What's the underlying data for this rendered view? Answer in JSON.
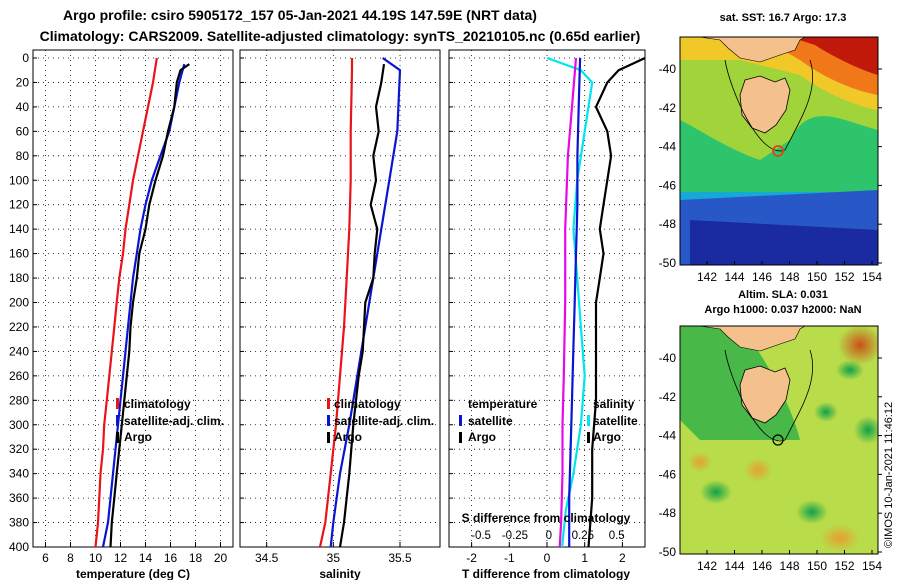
{
  "titles": {
    "line1": "Argo profile: csiro 5905172_157 05-Jan-2021 44.19S 147.59E (NRT data)",
    "line2": "Climatology: CARS2009. Satellite-adjusted climatology: synTS_20210105.nc (0.65d earlier)"
  },
  "colors": {
    "clim": "#e8141a",
    "sat": "#0a14d2",
    "argo": "#000000",
    "tdiff": "#00e5ee",
    "sdiff": "#e60ae6"
  },
  "legend": {
    "temp_panel": [
      "climatology",
      "satellite-adj. clim.",
      "Argo"
    ],
    "sal_panel": [
      "climatology",
      "satellite-adj. clim.",
      "Argo"
    ],
    "diff_left_title": "temperature",
    "diff_right_title": "salinity",
    "diff_items": [
      "satellite",
      "Argo"
    ]
  },
  "chart_data": [
    {
      "id": "temperature",
      "type": "line",
      "xlabel": "temperature (deg C)",
      "ylabel": "",
      "xlim": [
        5,
        21
      ],
      "ylim": [
        400,
        0
      ],
      "xticks": [
        6,
        8,
        10,
        12,
        14,
        16,
        18,
        20
      ],
      "yticks": [
        0,
        20,
        40,
        60,
        80,
        100,
        120,
        140,
        160,
        180,
        200,
        220,
        240,
        260,
        280,
        300,
        320,
        340,
        360,
        380,
        400
      ],
      "grid": true,
      "series": [
        {
          "name": "climatology",
          "color_key": "clim",
          "points": [
            [
              14.9,
              0
            ],
            [
              14.6,
              20
            ],
            [
              14.2,
              40
            ],
            [
              13.8,
              60
            ],
            [
              13.4,
              80
            ],
            [
              13.0,
              100
            ],
            [
              12.7,
              120
            ],
            [
              12.4,
              140
            ],
            [
              12.2,
              160
            ],
            [
              11.9,
              180
            ],
            [
              11.7,
              200
            ],
            [
              11.5,
              220
            ],
            [
              11.3,
              240
            ],
            [
              11.1,
              260
            ],
            [
              10.9,
              280
            ],
            [
              10.7,
              300
            ],
            [
              10.6,
              320
            ],
            [
              10.4,
              340
            ],
            [
              10.3,
              360
            ],
            [
              10.2,
              380
            ],
            [
              10.0,
              400
            ]
          ]
        },
        {
          "name": "satellite-adj. clim.",
          "color_key": "sat",
          "points": [
            [
              17.1,
              5
            ],
            [
              16.7,
              20
            ],
            [
              16.3,
              40
            ],
            [
              15.9,
              60
            ],
            [
              15.2,
              80
            ],
            [
              14.5,
              100
            ],
            [
              14.0,
              120
            ],
            [
              13.6,
              140
            ],
            [
              13.3,
              160
            ],
            [
              13.0,
              180
            ],
            [
              12.8,
              200
            ],
            [
              12.6,
              220
            ],
            [
              12.4,
              240
            ],
            [
              12.2,
              260
            ],
            [
              12.0,
              280
            ],
            [
              11.8,
              300
            ],
            [
              11.6,
              320
            ],
            [
              11.4,
              340
            ],
            [
              11.2,
              360
            ],
            [
              11.0,
              380
            ],
            [
              10.6,
              400
            ]
          ]
        },
        {
          "name": "Argo",
          "color_key": "argo",
          "points": [
            [
              17.5,
              5
            ],
            [
              16.8,
              10
            ],
            [
              16.5,
              20
            ],
            [
              16.3,
              40
            ],
            [
              15.8,
              60
            ],
            [
              15.4,
              80
            ],
            [
              14.8,
              100
            ],
            [
              14.3,
              120
            ],
            [
              14.0,
              140
            ],
            [
              13.5,
              160
            ],
            [
              13.3,
              180
            ],
            [
              13.0,
              200
            ],
            [
              12.8,
              220
            ],
            [
              12.7,
              240
            ],
            [
              12.5,
              260
            ],
            [
              12.3,
              280
            ],
            [
              12.1,
              300
            ],
            [
              11.9,
              320
            ],
            [
              11.7,
              340
            ],
            [
              11.5,
              360
            ],
            [
              11.3,
              380
            ],
            [
              11.2,
              400
            ]
          ]
        }
      ]
    },
    {
      "id": "salinity",
      "type": "line",
      "xlabel": "salinity",
      "ylabel": "",
      "xlim": [
        34.3,
        35.8
      ],
      "ylim": [
        400,
        0
      ],
      "xticks": [
        34.5,
        35,
        35.5
      ],
      "xticklabels": [
        "34.5",
        "35",
        "35.5"
      ],
      "grid": true,
      "series": [
        {
          "name": "climatology",
          "color_key": "clim",
          "points": [
            [
              35.14,
              0
            ],
            [
              35.14,
              10
            ],
            [
              35.13,
              60
            ],
            [
              35.13,
              100
            ],
            [
              35.12,
              140
            ],
            [
              35.1,
              180
            ],
            [
              35.08,
              220
            ],
            [
              35.05,
              260
            ],
            [
              35.02,
              300
            ],
            [
              34.98,
              340
            ],
            [
              34.94,
              380
            ],
            [
              34.9,
              400
            ]
          ]
        },
        {
          "name": "satellite-adj. clim.",
          "color_key": "sat",
          "points": [
            [
              35.37,
              0
            ],
            [
              35.5,
              10
            ],
            [
              35.48,
              60
            ],
            [
              35.42,
              100
            ],
            [
              35.36,
              140
            ],
            [
              35.3,
              180
            ],
            [
              35.24,
              220
            ],
            [
              35.18,
              260
            ],
            [
              35.12,
              300
            ],
            [
              35.05,
              340
            ],
            [
              35.0,
              380
            ],
            [
              34.98,
              400
            ]
          ]
        },
        {
          "name": "Argo",
          "color_key": "argo",
          "points": [
            [
              35.38,
              5
            ],
            [
              35.36,
              20
            ],
            [
              35.32,
              40
            ],
            [
              35.34,
              60
            ],
            [
              35.3,
              80
            ],
            [
              35.32,
              100
            ],
            [
              35.28,
              120
            ],
            [
              35.33,
              140
            ],
            [
              35.31,
              160
            ],
            [
              35.3,
              180
            ],
            [
              35.24,
              200
            ],
            [
              35.22,
              240
            ],
            [
              35.19,
              260
            ],
            [
              35.15,
              300
            ],
            [
              35.12,
              340
            ],
            [
              35.08,
              380
            ],
            [
              35.05,
              400
            ]
          ]
        }
      ]
    },
    {
      "id": "difference",
      "type": "line",
      "xlabel": "T difference from climatology",
      "top_axis_label": "S difference from climatology",
      "ylabel": "",
      "xlim": [
        -2.6,
        2.6
      ],
      "ylim": [
        400,
        0
      ],
      "xticks": [
        -2,
        -1,
        0,
        1,
        2
      ],
      "xticklabels": [
        "-2",
        "-1",
        "0",
        "1",
        "2"
      ],
      "s_xticks": [
        -0.5,
        -0.25,
        0,
        0.25,
        0.5
      ],
      "s_xticklabels": [
        "-0.5",
        "-0.25",
        "0",
        "0.25",
        "0.5"
      ],
      "grid": true,
      "series": [
        {
          "name": "T satellite",
          "axis": "T",
          "color_key": "tdiff",
          "points": [
            [
              0.0,
              0
            ],
            [
              0.9,
              10
            ],
            [
              1.2,
              20
            ],
            [
              1.0,
              60
            ],
            [
              0.8,
              100
            ],
            [
              0.7,
              140
            ],
            [
              0.8,
              180
            ],
            [
              0.9,
              220
            ],
            [
              1.0,
              260
            ],
            [
              0.9,
              300
            ],
            [
              0.7,
              340
            ],
            [
              0.5,
              370
            ],
            [
              0.4,
              400
            ]
          ]
        },
        {
          "name": "T Argo",
          "axis": "T",
          "color_key": "argo",
          "points": [
            [
              2.6,
              0
            ],
            [
              1.9,
              10
            ],
            [
              1.6,
              20
            ],
            [
              1.3,
              40
            ],
            [
              1.6,
              60
            ],
            [
              1.7,
              80
            ],
            [
              1.6,
              100
            ],
            [
              1.5,
              120
            ],
            [
              1.4,
              140
            ],
            [
              1.5,
              160
            ],
            [
              1.4,
              180
            ],
            [
              1.3,
              200
            ],
            [
              1.3,
              240
            ],
            [
              1.3,
              280
            ],
            [
              1.2,
              320
            ],
            [
              1.2,
              360
            ],
            [
              1.1,
              400
            ]
          ]
        },
        {
          "name": "S satellite",
          "axis": "S",
          "color_key": "sdiff",
          "points": [
            [
              0.2,
              0
            ],
            [
              0.17,
              40
            ],
            [
              0.14,
              80
            ],
            [
              0.12,
              140
            ],
            [
              0.12,
              200
            ],
            [
              0.11,
              260
            ],
            [
              0.1,
              300
            ],
            [
              0.1,
              340
            ],
            [
              0.09,
              380
            ],
            [
              0.08,
              400
            ]
          ]
        },
        {
          "name": "S Argo",
          "axis": "S",
          "color_key": "sat",
          "points": [
            [
              0.23,
              0
            ],
            [
              0.22,
              40
            ],
            [
              0.21,
              80
            ],
            [
              0.21,
              120
            ],
            [
              0.2,
              160
            ],
            [
              0.19,
              200
            ],
            [
              0.18,
              240
            ],
            [
              0.17,
              280
            ],
            [
              0.16,
              320
            ],
            [
              0.15,
              360
            ],
            [
              0.15,
              400
            ]
          ]
        }
      ]
    }
  ],
  "maps": {
    "sst": {
      "title": "sat. SST: 16.7 Argo: 17.3",
      "lon_ticks": [
        "142",
        "144",
        "146",
        "148",
        "150",
        "152",
        "154"
      ],
      "lat_ticks": [
        "-40",
        "-42",
        "-44",
        "-46",
        "-48",
        "-50"
      ]
    },
    "sla": {
      "title_line1": "Altim. SLA: 0.031",
      "title_line2": "Argo h1000: 0.037 h2000: NaN",
      "lon_ticks": [
        "142",
        "144",
        "146",
        "148",
        "150",
        "152",
        "154"
      ],
      "lat_ticks": [
        "-40",
        "-42",
        "-44",
        "-46",
        "-48",
        "-50"
      ]
    }
  },
  "footer": "©IMOS 10-Jan-2021 11:46:12"
}
